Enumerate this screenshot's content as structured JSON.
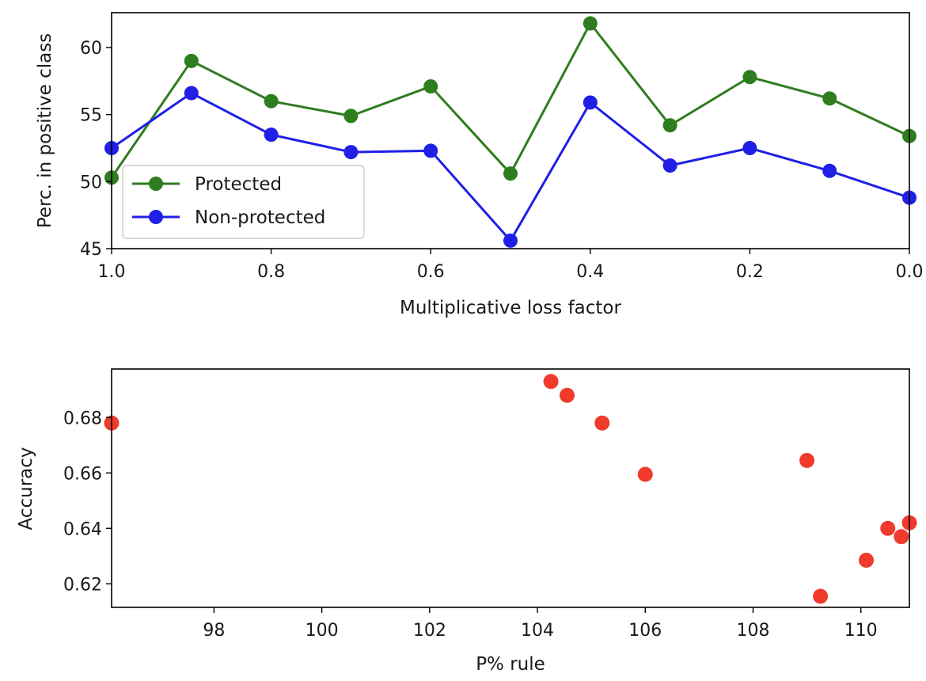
{
  "chart_data": [
    {
      "type": "line",
      "title": "",
      "xlabel": "Multiplicative loss factor",
      "ylabel": "Perc. in positive class",
      "x": [
        1.0,
        0.9,
        0.8,
        0.7,
        0.6,
        0.5,
        0.4,
        0.3,
        0.2,
        0.1,
        0.0
      ],
      "xlim": [
        1.0,
        0.0
      ],
      "ylim": [
        45,
        62.6
      ],
      "xticks": [
        1.0,
        0.8,
        0.6,
        0.4,
        0.2,
        0.0
      ],
      "xtick_labels": [
        "1.0",
        "0.8",
        "0.6",
        "0.4",
        "0.2",
        "0.0"
      ],
      "yticks": [
        45,
        50,
        55,
        60
      ],
      "ytick_labels": [
        "45",
        "50",
        "55",
        "60"
      ],
      "grid": false,
      "legend_position": "lower-left",
      "series": [
        {
          "name": "Protected",
          "color": "#2e7d1e",
          "values": [
            50.3,
            59.0,
            56.0,
            54.9,
            57.1,
            50.6,
            61.8,
            54.2,
            57.8,
            56.2,
            53.4
          ]
        },
        {
          "name": "Non-protected",
          "color": "#1f1fe6",
          "values": [
            52.5,
            56.6,
            53.5,
            52.2,
            52.3,
            45.6,
            55.9,
            51.2,
            52.5,
            50.8,
            48.8
          ]
        }
      ]
    },
    {
      "type": "scatter",
      "title": "",
      "xlabel": "P% rule",
      "ylabel": "Accuracy",
      "xlim": [
        96.1,
        110.9
      ],
      "ylim": [
        0.6115,
        0.6975
      ],
      "xticks": [
        98,
        100,
        102,
        104,
        106,
        108,
        110
      ],
      "xtick_labels": [
        "98",
        "100",
        "102",
        "104",
        "106",
        "108",
        "110"
      ],
      "yticks": [
        0.62,
        0.64,
        0.66,
        0.68
      ],
      "ytick_labels": [
        "0.62",
        "0.64",
        "0.66",
        "0.68"
      ],
      "grid": false,
      "color": "#f03a2b",
      "points": [
        {
          "x": 96.1,
          "y": 0.678
        },
        {
          "x": 104.25,
          "y": 0.693
        },
        {
          "x": 104.55,
          "y": 0.688
        },
        {
          "x": 105.2,
          "y": 0.678
        },
        {
          "x": 106.0,
          "y": 0.6595
        },
        {
          "x": 109.0,
          "y": 0.6645
        },
        {
          "x": 109.25,
          "y": 0.6155
        },
        {
          "x": 110.1,
          "y": 0.6285
        },
        {
          "x": 110.5,
          "y": 0.64
        },
        {
          "x": 110.75,
          "y": 0.637
        },
        {
          "x": 110.9,
          "y": 0.642
        }
      ]
    }
  ]
}
